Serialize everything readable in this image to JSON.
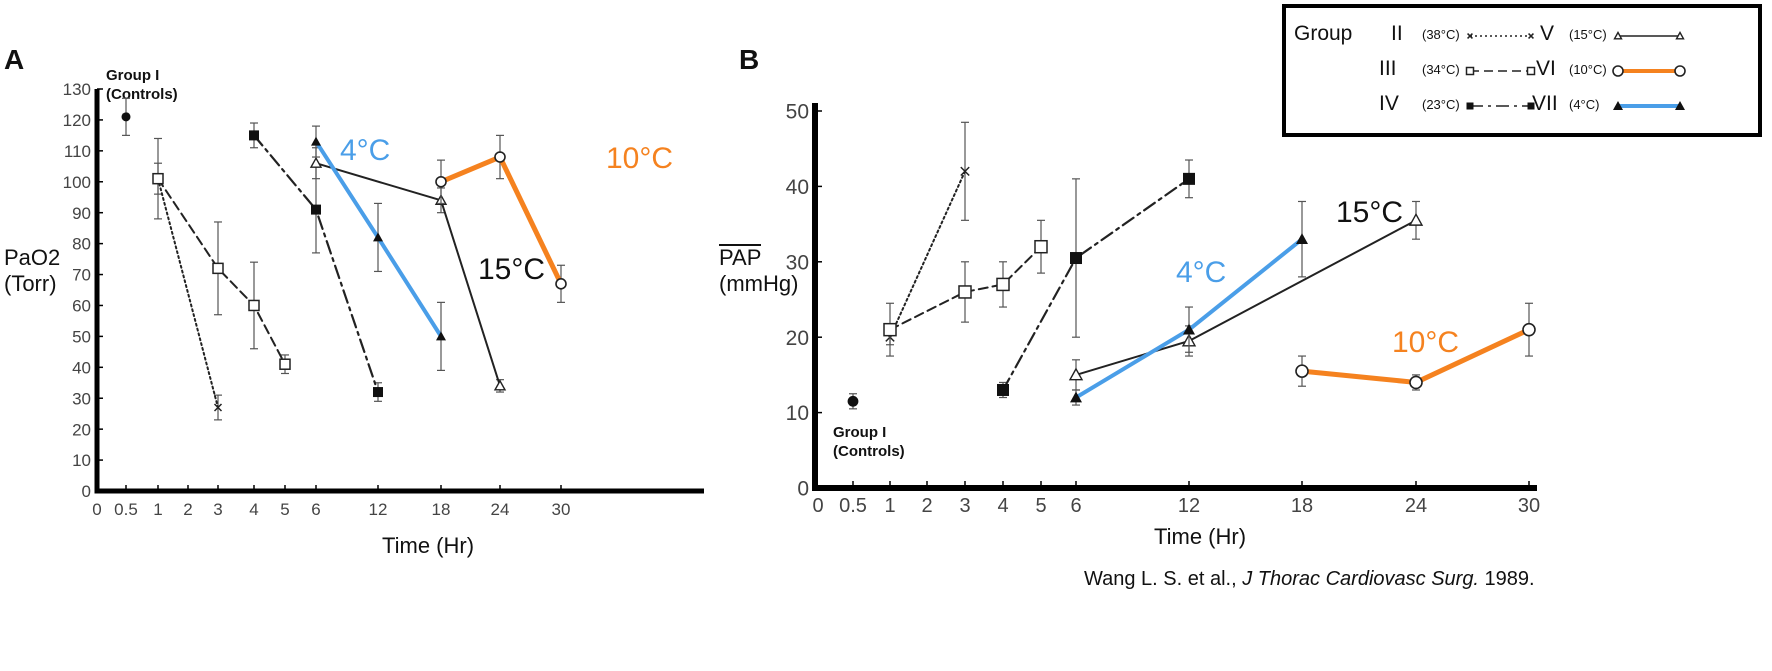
{
  "legend": {
    "group_label": "Group",
    "items": [
      {
        "name": "II",
        "temp": "(38°C)",
        "color": "#222222",
        "marker": "x",
        "dash": "dotted"
      },
      {
        "name": "III",
        "temp": "(34°C)",
        "color": "#222222",
        "marker": "open-square",
        "dash": "dashed"
      },
      {
        "name": "IV",
        "temp": "(23°C)",
        "color": "#222222",
        "marker": "filled-square",
        "dash": "dash-dot"
      },
      {
        "name": "V",
        "temp": "(15°C)",
        "color": "#222222",
        "marker": "open-triangle",
        "dash": "solid"
      },
      {
        "name": "VI",
        "temp": "(10°C)",
        "color": "#f5821f",
        "marker": "open-circle",
        "dash": "solid"
      },
      {
        "name": "VII",
        "temp": "(4°C)",
        "color": "#4a9ee8",
        "marker": "filled-triangle",
        "dash": "solid"
      }
    ]
  },
  "citation": {
    "authors": "Wang L. S. et al., ",
    "journal": "J Thorac Cardiovasc Surg.",
    "year": " 1989."
  },
  "chart_data": [
    {
      "panel": "A",
      "type": "line",
      "ylabel_line1": "PaO2",
      "ylabel_line2": "(Torr)",
      "xlabel": "Time (Hr)",
      "x_ticks": [
        "0",
        "0.5",
        "1",
        "2",
        "3",
        "4",
        "5",
        "6",
        "12",
        "18",
        "24",
        "30"
      ],
      "y_ticks": [
        0,
        10,
        20,
        30,
        40,
        50,
        60,
        70,
        80,
        90,
        100,
        110,
        120,
        130
      ],
      "ylim": [
        0,
        130
      ],
      "control_label_1": "Group I",
      "control_label_2": "(Controls)",
      "annotations": [
        {
          "text": "4°C",
          "color": "#4a9ee8"
        },
        {
          "text": "10°C",
          "color": "#f5821f"
        },
        {
          "text": "15°C",
          "color": "#111111"
        }
      ],
      "series": [
        {
          "name": "I",
          "marker": "filled-circle",
          "points": [
            {
              "x": "0.5",
              "y": 121,
              "err": 6
            }
          ]
        },
        {
          "name": "II",
          "points": [
            {
              "x": "1",
              "y": 101,
              "err": 5
            },
            {
              "x": "3",
              "y": 27,
              "err": 4
            }
          ]
        },
        {
          "name": "III",
          "points": [
            {
              "x": "1",
              "y": 101,
              "err": 13
            },
            {
              "x": "3",
              "y": 72,
              "err": 15
            },
            {
              "x": "4",
              "y": 60,
              "err": 14
            },
            {
              "x": "5",
              "y": 41,
              "err": 3
            }
          ]
        },
        {
          "name": "IV",
          "points": [
            {
              "x": "4",
              "y": 115,
              "err": 4
            },
            {
              "x": "6",
              "y": 91,
              "err": 14
            },
            {
              "x": "12",
              "y": 32,
              "err": 3
            }
          ]
        },
        {
          "name": "V",
          "points": [
            {
              "x": "6",
              "y": 106,
              "err": 5
            },
            {
              "x": "18",
              "y": 94,
              "err": 4
            },
            {
              "x": "24",
              "y": 34,
              "err": 2
            }
          ]
        },
        {
          "name": "VII",
          "points": [
            {
              "x": "6",
              "y": 113,
              "err": 5
            },
            {
              "x": "12",
              "y": 82,
              "err": 11
            },
            {
              "x": "18",
              "y": 50,
              "err": 11
            }
          ]
        },
        {
          "name": "VI",
          "points": [
            {
              "x": "18",
              "y": 100,
              "err": 7
            },
            {
              "x": "24",
              "y": 108,
              "err": 7
            },
            {
              "x": "30",
              "y": 67,
              "err": 6
            }
          ]
        }
      ]
    },
    {
      "panel": "B",
      "type": "line",
      "ylabel_line1": "PAP",
      "ylabel_line2": "(mmHg)",
      "xlabel": "Time (Hr)",
      "x_ticks": [
        "0",
        "0.5",
        "1",
        "2",
        "3",
        "4",
        "5",
        "6",
        "12",
        "18",
        "24",
        "30"
      ],
      "y_ticks": [
        0,
        10,
        20,
        30,
        40,
        50
      ],
      "ylim": [
        0,
        50
      ],
      "control_label_1": "Group I",
      "control_label_2": "(Controls)",
      "annotations": [
        {
          "text": "15°C",
          "color": "#111111"
        },
        {
          "text": "4°C",
          "color": "#4a9ee8"
        },
        {
          "text": "10°C",
          "color": "#f5821f"
        }
      ],
      "series": [
        {
          "name": "I",
          "marker": "filled-circle",
          "points": [
            {
              "x": "0.5",
              "y": 11.5,
              "err": 1
            }
          ]
        },
        {
          "name": "II",
          "points": [
            {
              "x": "1",
              "y": 20,
              "err": 1
            },
            {
              "x": "3",
              "y": 42,
              "err": 6.5
            }
          ]
        },
        {
          "name": "III",
          "points": [
            {
              "x": "1",
              "y": 21,
              "err": 3.5
            },
            {
              "x": "3",
              "y": 26,
              "err": 4
            },
            {
              "x": "4",
              "y": 27,
              "err": 3
            },
            {
              "x": "5",
              "y": 32,
              "err": 3.5
            }
          ]
        },
        {
          "name": "IV",
          "points": [
            {
              "x": "4",
              "y": 13,
              "err": 1
            },
            {
              "x": "6",
              "y": 30.5,
              "err": 10.5
            },
            {
              "x": "12",
              "y": 41,
              "err": 2.5
            }
          ]
        },
        {
          "name": "V",
          "points": [
            {
              "x": "6",
              "y": 15,
              "err": 2
            },
            {
              "x": "12",
              "y": 19.5,
              "err": 2
            },
            {
              "x": "24",
              "y": 35.5,
              "err": 2.5
            }
          ]
        },
        {
          "name": "VII",
          "points": [
            {
              "x": "6",
              "y": 12,
              "err": 1
            },
            {
              "x": "12",
              "y": 21,
              "err": 3
            },
            {
              "x": "18",
              "y": 33,
              "err": 5
            }
          ]
        },
        {
          "name": "VI",
          "points": [
            {
              "x": "18",
              "y": 15.5,
              "err": 2
            },
            {
              "x": "24",
              "y": 14,
              "err": 1
            },
            {
              "x": "30",
              "y": 21,
              "err": 3.5
            }
          ]
        }
      ]
    }
  ]
}
